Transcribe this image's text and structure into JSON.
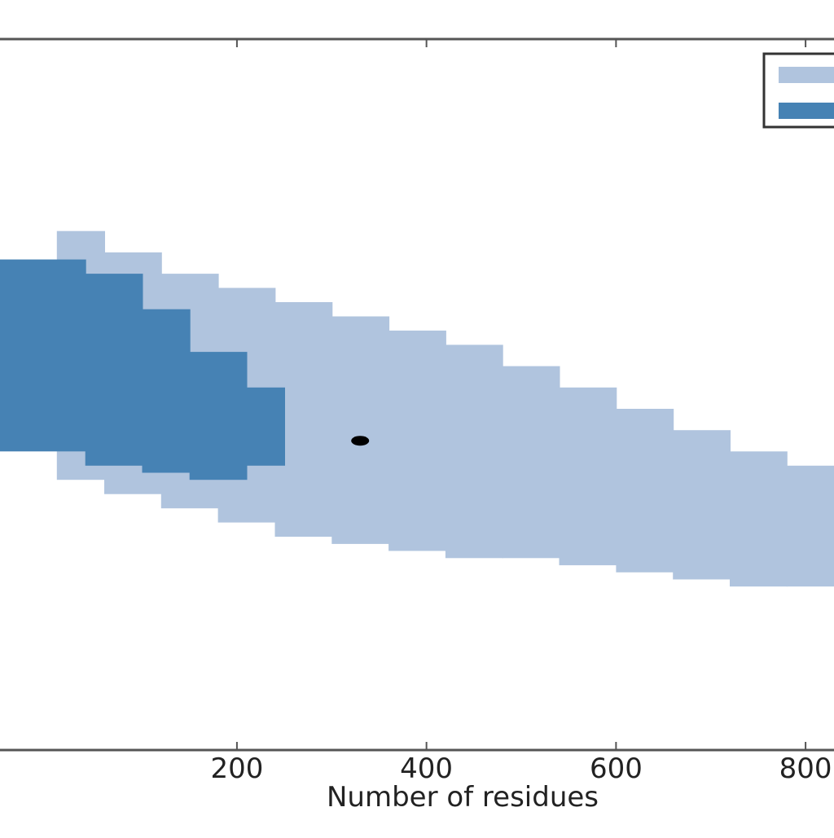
{
  "chart_data": {
    "type": "heatmap",
    "xlabel": "Number of residues",
    "ylabel": "",
    "title": "",
    "xlim": [
      -50,
      830
    ],
    "x_ticks": [
      "200",
      "400",
      "600",
      "800"
    ],
    "x_tick_values": [
      200,
      400,
      600,
      800
    ],
    "legend_position": "top-right",
    "series": [
      {
        "color": "#b0c4de",
        "regions": [
          {
            "x": [
              10,
              60
            ],
            "band": [
              0.27,
              0.62
            ]
          },
          {
            "x": [
              60,
              120
            ],
            "band": [
              0.3,
              0.64
            ]
          },
          {
            "x": [
              120,
              180
            ],
            "band": [
              0.33,
              0.66
            ]
          },
          {
            "x": [
              180,
              240
            ],
            "band": [
              0.35,
              0.68
            ]
          },
          {
            "x": [
              240,
              300
            ],
            "band": [
              0.37,
              0.7
            ]
          },
          {
            "x": [
              300,
              360
            ],
            "band": [
              0.39,
              0.71
            ]
          },
          {
            "x": [
              360,
              420
            ],
            "band": [
              0.41,
              0.72
            ]
          },
          {
            "x": [
              420,
              480
            ],
            "band": [
              0.43,
              0.73
            ]
          },
          {
            "x": [
              480,
              540
            ],
            "band": [
              0.46,
              0.73
            ]
          },
          {
            "x": [
              540,
              600
            ],
            "band": [
              0.49,
              0.74
            ]
          },
          {
            "x": [
              600,
              660
            ],
            "band": [
              0.52,
              0.75
            ]
          },
          {
            "x": [
              660,
              720
            ],
            "band": [
              0.55,
              0.76
            ]
          },
          {
            "x": [
              720,
              780
            ],
            "band": [
              0.58,
              0.77
            ]
          },
          {
            "x": [
              780,
              830
            ],
            "band": [
              0.6,
              0.77
            ]
          }
        ]
      },
      {
        "color": "#4682b4",
        "regions": [
          {
            "x": [
              -50,
              40
            ],
            "band": [
              0.31,
              0.58
            ]
          },
          {
            "x": [
              40,
              100
            ],
            "band": [
              0.33,
              0.6
            ]
          },
          {
            "x": [
              100,
              150
            ],
            "band": [
              0.38,
              0.61
            ]
          },
          {
            "x": [
              150,
              210
            ],
            "band": [
              0.44,
              0.62
            ]
          },
          {
            "x": [
              210,
              250
            ],
            "band": [
              0.49,
              0.6
            ]
          }
        ]
      }
    ],
    "highlight_point": {
      "x": 330,
      "band": 0.565,
      "color": "#000000"
    }
  }
}
